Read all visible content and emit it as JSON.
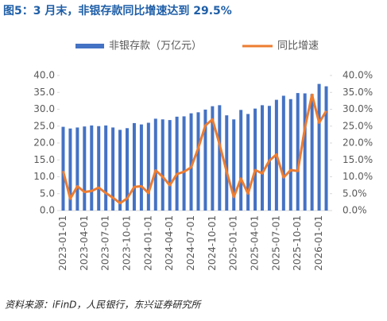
{
  "chart_data": {
    "type": "bar_line",
    "title": "图5：3 月末，非银存款同比增速达到 29.5%",
    "source": "资料来源：iFinD，人民银行，东兴证券研究所",
    "categories": [
      "2023-01-01",
      null,
      null,
      "2023-04-01",
      null,
      null,
      "2023-07-01",
      null,
      null,
      "2023-10-01",
      null,
      null,
      "2024-01-01",
      null,
      null,
      "2024-04-01",
      null,
      null,
      "2024-07-01",
      null,
      null,
      "2024-10-01",
      null,
      null,
      "2025-01-01",
      null,
      null,
      "2025-04-01",
      null,
      null,
      "2025-07-01",
      null,
      null,
      "2025-10-01",
      null,
      null,
      "2026-01-01",
      null
    ],
    "series": [
      {
        "name": "非银存款（万亿元）",
        "color": "#4472c4",
        "values": [
          24.8,
          24.3,
          24.6,
          24.9,
          25.2,
          25.0,
          25.2,
          24.6,
          23.9,
          24.4,
          25.9,
          25.5,
          26.0,
          27.2,
          27.0,
          26.8,
          27.8,
          27.9,
          28.8,
          29.1,
          29.9,
          30.9,
          31.2,
          28.2,
          27.0,
          29.8,
          28.6,
          30.2,
          31.2,
          31.0,
          32.8,
          34.0,
          33.0,
          34.8,
          34.7,
          34.5,
          37.5,
          36.8
        ]
      },
      {
        "name": "同比增速",
        "color": "#ed7d31",
        "axis": "y2",
        "values": [
          11.7,
          3.5,
          7.2,
          5.5,
          5.8,
          6.8,
          5.2,
          3.8,
          2.2,
          3.6,
          7.0,
          7.2,
          5.2,
          11.9,
          10.0,
          7.5,
          10.8,
          11.5,
          12.8,
          18.5,
          25.2,
          27.0,
          19.6,
          11.5,
          4.0,
          9.5,
          5.0,
          12.0,
          11.0,
          14.8,
          16.6,
          9.8,
          12.0,
          11.7,
          24.5,
          34.3,
          26.0,
          29.5
        ]
      }
    ],
    "ylim": [
      0,
      40
    ],
    "yticks": [
      {
        "value": 0,
        "label": "0.0"
      },
      {
        "value": 5,
        "label": "5.0"
      },
      {
        "value": 10,
        "label": "10.0"
      },
      {
        "value": 15,
        "label": "15.0"
      },
      {
        "value": 20,
        "label": "20.0"
      },
      {
        "value": 25,
        "label": "25.0"
      },
      {
        "value": 30,
        "label": "30.0"
      },
      {
        "value": 35,
        "label": "35.0"
      },
      {
        "value": 40,
        "label": "40.0"
      }
    ],
    "y2lim": [
      0,
      40
    ],
    "y2ticks": [
      {
        "value": 0,
        "label": "0.0%"
      },
      {
        "value": 5,
        "label": "5.0%"
      },
      {
        "value": 10,
        "label": "10.0%"
      },
      {
        "value": 15,
        "label": "15.0%"
      },
      {
        "value": 20,
        "label": "20.0%"
      },
      {
        "value": 25,
        "label": "25.0%"
      },
      {
        "value": 30,
        "label": "30.0%"
      },
      {
        "value": 35,
        "label": "35.0%"
      },
      {
        "value": 40,
        "label": "40.0%"
      }
    ]
  }
}
